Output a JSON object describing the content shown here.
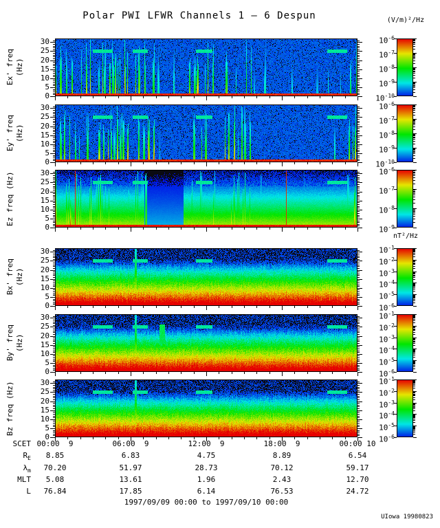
{
  "meta": {
    "title": "Polar PWI LFWR Channels 1 — 6 Despun",
    "units_top": "(V/m)²/Hz",
    "units_mid": "nT²/Hz",
    "date_range": "1997/09/09 00:00 to 1997/09/10 00:00",
    "credit": "UIowa 19980823"
  },
  "chart_data": {
    "type": "heatmap",
    "title": "Polar PWI LFWR Channels 1 — 6 Despun",
    "subtitle": "1997/09/09 00:00 to 1997/09/10 00:00",
    "x_axis": {
      "label": "SCET",
      "hours": [
        0,
        6,
        12,
        18,
        24
      ],
      "tick_labels": [
        "00:00  9",
        "06:00  9",
        "12:00  9",
        "18:00  9",
        "00:00 10"
      ]
    },
    "y_axis": {
      "ticks": [
        0,
        5,
        10,
        15,
        20,
        25,
        30
      ],
      "range": [
        0,
        32
      ],
      "unit": "Hz"
    },
    "colormap": {
      "low": "#0000a0",
      "mid": "#00c000",
      "high": "#ff0000",
      "scale": "log rainbow"
    },
    "panels": [
      {
        "name": "Ex",
        "ylabel": "Ex' freq (Hz)",
        "units": "(V/m)²/Hz",
        "colorbar_exponents": [
          -6,
          -7,
          -8,
          -9,
          -10
        ],
        "style": "E",
        "description": "Broadband electric bursts, intense 00:00-08:00 and 10:30-14:00, sparse green streaks afterwards, burst again near 24:00; red band at lowest frequencies; cyan interference dashes near 25 Hz"
      },
      {
        "name": "Ey",
        "ylabel": "Ey' freq (Hz)",
        "units": "(V/m)²/Hz",
        "colorbar_exponents": [
          -6,
          -7,
          -8,
          -9,
          -10
        ],
        "style": "E",
        "description": "Similar burst pattern to Ex"
      },
      {
        "name": "Ez",
        "ylabel": "Ez freq (Hz)",
        "units": "(V/m)²/Hz",
        "colorbar_exponents": [
          -6,
          -7,
          -8,
          -9
        ],
        "style": "Ez",
        "description": "Smooth yellow-green background rising toward low frequency, dark quiet block ~07:00-10:00, bursts as in Ex, two thin red vertical lines near 01:30 and 18:20"
      },
      {
        "name": "Bx",
        "ylabel": "Bx' freq (Hz)",
        "units": "nT²/Hz",
        "colorbar_exponents": [
          -1,
          -2,
          -3,
          -4,
          -5,
          -6
        ],
        "style": "B",
        "description": "Smooth falling spectrum: red at 0-3 Hz grading through yellow/green/cyan to blue above 20 Hz; narrow burst near 06:30; cyan dashes near 25 Hz"
      },
      {
        "name": "By",
        "ylabel": "By' freq (Hz)",
        "units": "nT²/Hz",
        "colorbar_exponents": [
          -1,
          -2,
          -3,
          -4,
          -5,
          -6
        ],
        "style": "By",
        "description": "As Bx, with additional small cyan enhancement near 08:30 at 15-25 Hz"
      },
      {
        "name": "Bz",
        "ylabel": "Bz freq (Hz)",
        "units": "nT²/Hz",
        "colorbar_exponents": [
          -1,
          -2,
          -3,
          -4,
          -5,
          -6
        ],
        "style": "B",
        "description": "As Bx"
      }
    ],
    "ephemeris": {
      "rows": [
        {
          "main": "SCET",
          "sub": "",
          "values": [
            "00:00  9",
            "06:00  9",
            "12:00  9",
            "18:00  9",
            "00:00 10"
          ]
        },
        {
          "main": "R",
          "sub": "E",
          "values": [
            "8.85",
            "6.83",
            "4.75",
            "8.89",
            "6.54"
          ]
        },
        {
          "main": "λ",
          "sub": "m",
          "values": [
            "70.20",
            "51.97",
            "28.73",
            "70.12",
            "59.17"
          ]
        },
        {
          "main": "MLT",
          "sub": "",
          "values": [
            "5.08",
            "13.61",
            "1.96",
            "2.43",
            "12.70"
          ]
        },
        {
          "main": "L",
          "sub": "",
          "values": [
            "76.84",
            "17.85",
            "6.14",
            "76.53",
            "24.72"
          ]
        }
      ]
    },
    "annotations": {
      "credit": "UIowa 19980823"
    }
  }
}
